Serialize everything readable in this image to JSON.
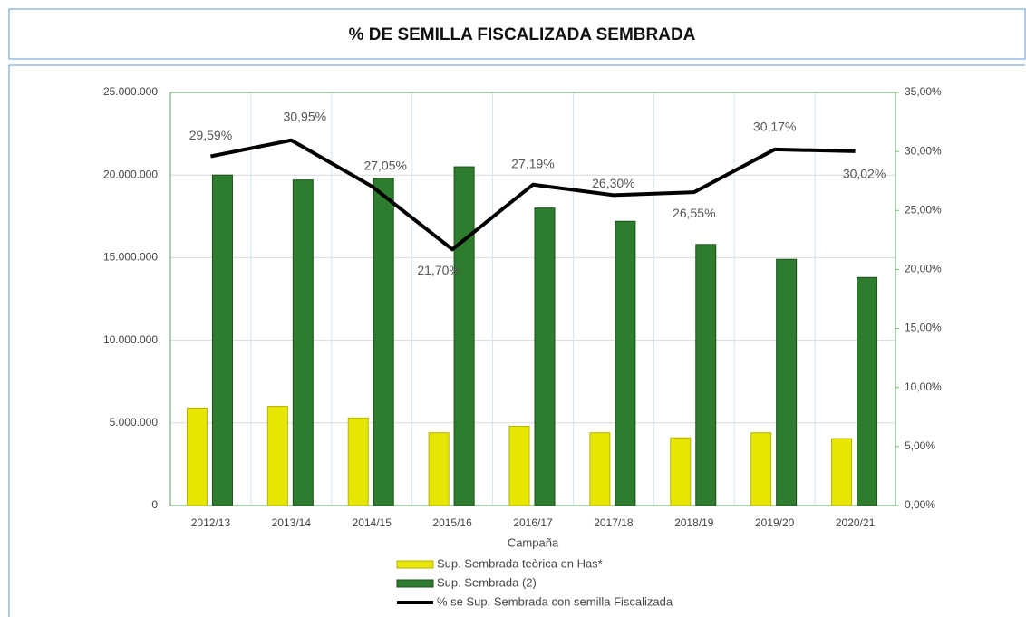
{
  "chart_data": {
    "type": "bar_line",
    "title": "% DE SEMILLA FISCALIZADA SEMBRADA",
    "x_label": "Campaña",
    "categories": [
      "2012/13",
      "2013/14",
      "2014/15",
      "2015/16",
      "2016/17",
      "2017/18",
      "2018/19",
      "2019/20",
      "2020/21"
    ],
    "series": [
      {
        "name": "Sup. Sembrada teòrica en Has*",
        "color": "#e6e600",
        "type": "bar",
        "values": [
          5900000,
          6000000,
          5300000,
          4400000,
          4800000,
          4400000,
          4100000,
          4400000,
          4050000
        ]
      },
      {
        "name": "Sup. Sembrada (2)",
        "color": "#2e7d2e",
        "type": "bar",
        "values": [
          20000000,
          19700000,
          19800000,
          20500000,
          18000000,
          17200000,
          15800000,
          14900000,
          13800000
        ]
      },
      {
        "name": "% se Sup. Sembrada con semilla Fiscalizada",
        "color": "#000000",
        "type": "line",
        "axis": "y2",
        "values": [
          29.59,
          30.95,
          27.05,
          21.7,
          27.19,
          26.3,
          26.55,
          30.17,
          30.02
        ],
        "value_labels": [
          "29,59%",
          "30,95%",
          "27,05%",
          "21,70%",
          "27,19%",
          "26,30%",
          "26,55%",
          "30,17%",
          "30,02%"
        ]
      }
    ],
    "ylim": [
      0,
      25000000
    ],
    "yticks": [
      0,
      {
        "value": 5000000,
        "label": "5.000.000"
      },
      {
        "value": 10000000,
        "label": "10.000.000"
      },
      {
        "value": 15000000,
        "label": "15.000.000"
      },
      {
        "value": 20000000,
        "label": "20.000.000"
      },
      {
        "value": 25000000,
        "label": "25.000.000"
      }
    ],
    "y2lim": [
      0,
      35
    ],
    "y2ticks": [
      {
        "value": 0,
        "label": "0,00%"
      },
      {
        "value": 5,
        "label": "5,00%"
      },
      {
        "value": 10,
        "label": "10,00%"
      },
      {
        "value": 15,
        "label": "15,00%"
      },
      {
        "value": 20,
        "label": "20,00%"
      },
      {
        "value": 25,
        "label": "25,00%"
      },
      {
        "value": 30,
        "label": "30,00%"
      },
      {
        "value": 35,
        "label": "35,00%"
      }
    ],
    "grid": true
  }
}
